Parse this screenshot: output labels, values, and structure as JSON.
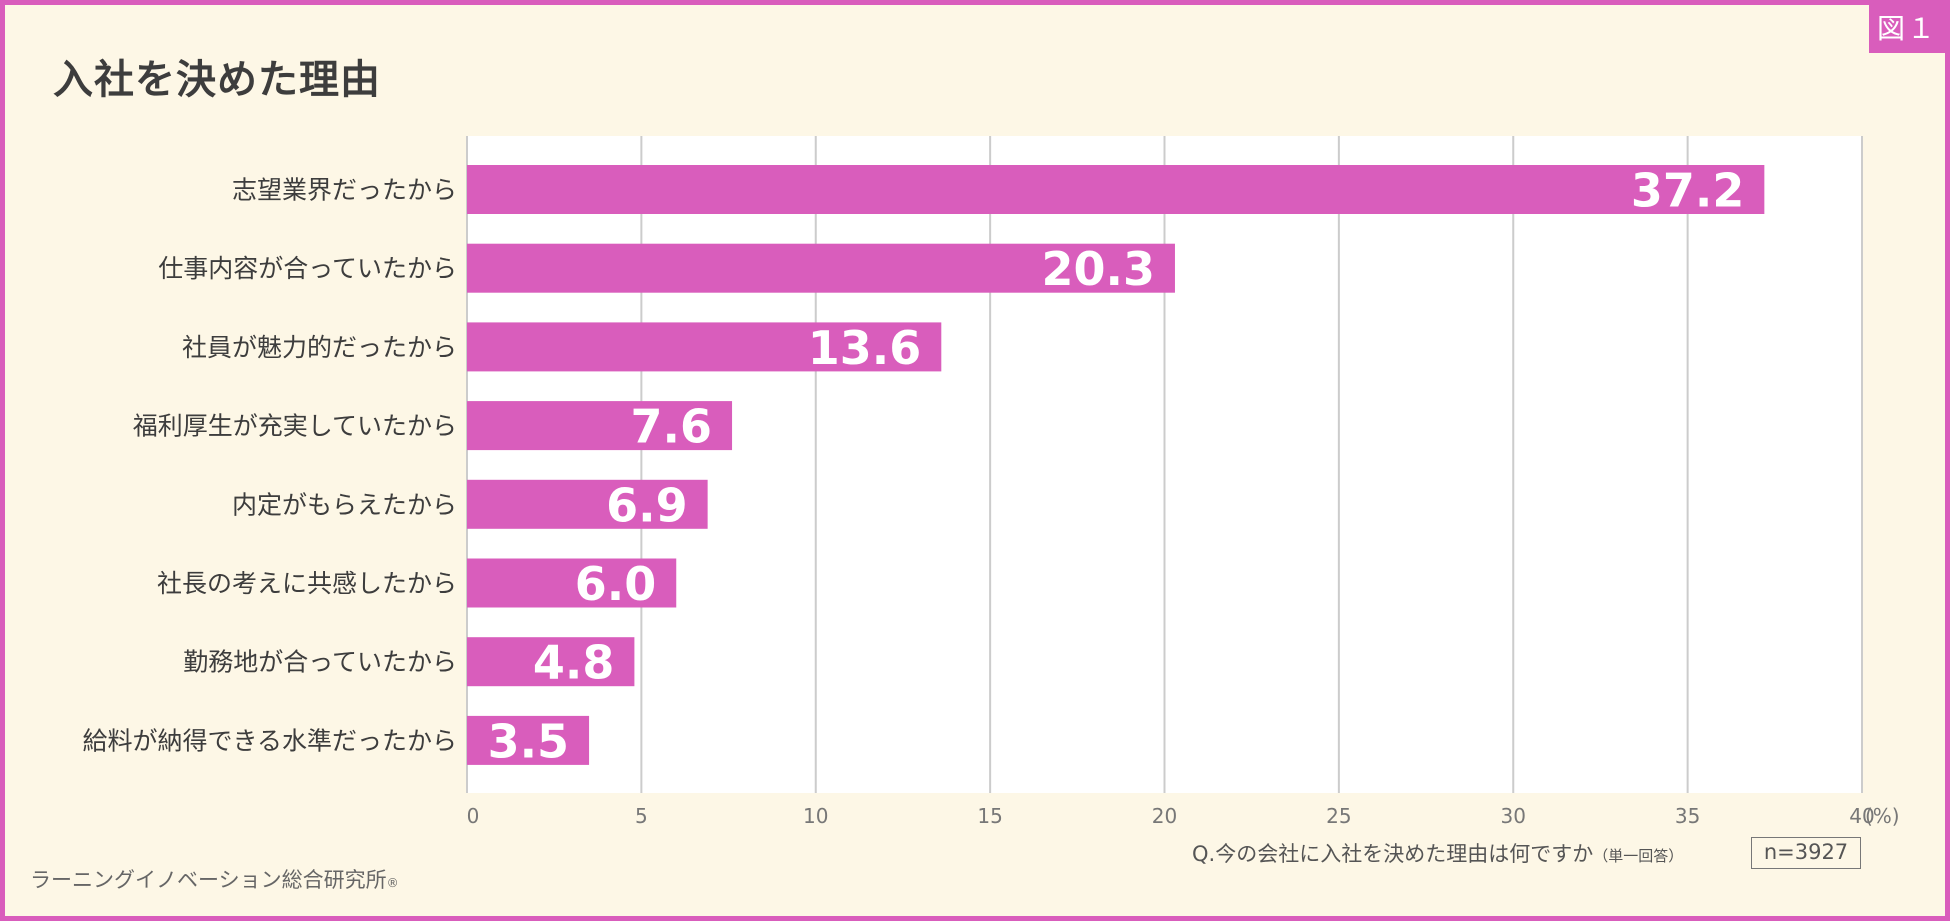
{
  "figure_label": "図１",
  "title": "入社を決めた理由",
  "question": "Q.今の会社に入社を決めた理由は何ですか",
  "question_note": "（単一回答）",
  "sample_size": "n=3927",
  "source": "ラーニングイノベーション総合研究所",
  "source_mark": "®",
  "colors": {
    "accent": "#d95dbc",
    "background": "#fdf7e6",
    "plot_area": "#ffffff",
    "grid": "#cccccc",
    "text": "#3d3d3d"
  },
  "chart_data": {
    "type": "bar",
    "orientation": "horizontal",
    "title": "入社を決めた理由",
    "categories": [
      "志望業界だったから",
      "仕事内容が合っていたから",
      "社員が魅力的だったから",
      "福利厚生が充実していたから",
      "内定がもらえたから",
      "社長の考えに共感したから",
      "勤務地が合っていたから",
      "給料が納得できる水準だったから"
    ],
    "values": [
      37.2,
      20.3,
      13.6,
      7.6,
      6.9,
      6.0,
      4.8,
      3.5
    ],
    "value_labels": [
      "37.2",
      "20.3",
      "13.6",
      "7.6",
      "6.9",
      "6.0",
      "4.8",
      "3.5"
    ],
    "xlim": [
      0,
      40
    ],
    "xticks": [
      0,
      5,
      10,
      15,
      20,
      25,
      30,
      35,
      40
    ],
    "xtick_labels": [
      "0",
      "5",
      "10",
      "15",
      "20",
      "25",
      "30",
      "35",
      "40"
    ],
    "xunit": "(%)",
    "grid": true
  }
}
